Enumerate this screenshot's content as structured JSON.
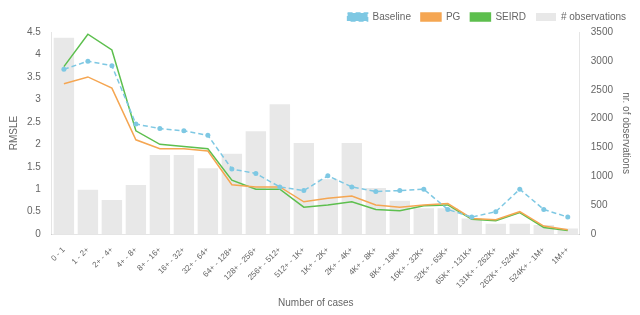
{
  "chart_data": {
    "type": "line",
    "categories": [
      "0 - 1",
      "1 - 2+",
      "2+ - 4+",
      "4+ - 8+",
      "8+ - 16+",
      "16+ - 32+",
      "32+ - 64+",
      "64+ - 128+",
      "128+ - 256+",
      "256+ - 512+",
      "512+ - 1K+",
      "1K+ - 2K+",
      "2K+ - 4K+",
      "4K+ - 8K+",
      "8K+ - 16K+",
      "16K+ - 32K+",
      "32K+ - 65K+",
      "65K+ - 131K+",
      "131K+ - 262K+",
      "262K+ - 524K+",
      "524K+ - 1M+",
      "1M++"
    ],
    "series": [
      {
        "name": "Baseline",
        "type": "line",
        "color": "#7ec8e3",
        "marker": "circle",
        "line_style": "dashed",
        "values": [
          3.67,
          3.85,
          3.75,
          2.45,
          2.35,
          2.3,
          2.2,
          1.45,
          1.35,
          1.05,
          0.97,
          1.3,
          1.05,
          0.95,
          0.97,
          1.0,
          0.55,
          0.38,
          0.5,
          1.0,
          0.55,
          0.38
        ]
      },
      {
        "name": "PG",
        "type": "line",
        "color": "#f5a652",
        "line_style": "solid",
        "values": [
          3.35,
          3.5,
          3.25,
          2.1,
          1.9,
          1.9,
          1.85,
          1.1,
          1.05,
          1.05,
          0.72,
          0.8,
          0.85,
          0.65,
          0.6,
          0.65,
          0.68,
          0.35,
          0.32,
          0.5,
          0.18,
          0.1
        ]
      },
      {
        "name": "SEIRD",
        "type": "line",
        "color": "#5dbf4e",
        "line_style": "solid",
        "values": [
          3.73,
          4.45,
          4.1,
          2.3,
          2.0,
          1.95,
          1.9,
          1.2,
          1.0,
          1.0,
          0.6,
          0.65,
          0.72,
          0.55,
          0.52,
          0.63,
          0.65,
          0.33,
          0.3,
          0.48,
          0.15,
          0.08
        ]
      },
      {
        "name": "# observations",
        "type": "bar",
        "axis": "y2",
        "color": "#d8d8d8",
        "values": [
          3400,
          770,
          590,
          850,
          1370,
          1370,
          1140,
          1390,
          1780,
          2250,
          1580,
          950,
          1580,
          800,
          580,
          450,
          450,
          270,
          180,
          180,
          160,
          100
        ]
      }
    ],
    "xlabel": "Number of cases",
    "ylabel": "RMSLE",
    "y2label": "nr. of observations",
    "ylim": [
      0,
      4.5
    ],
    "yticks": [
      0,
      0.5,
      1.0,
      1.5,
      2.0,
      2.5,
      3.0,
      3.5,
      4.0,
      4.5
    ],
    "y2lim": [
      0,
      3500
    ],
    "y2ticks": [
      0,
      500,
      1000,
      1500,
      2000,
      2500,
      3000,
      3500
    ],
    "grid": false,
    "legend": "upper right"
  }
}
